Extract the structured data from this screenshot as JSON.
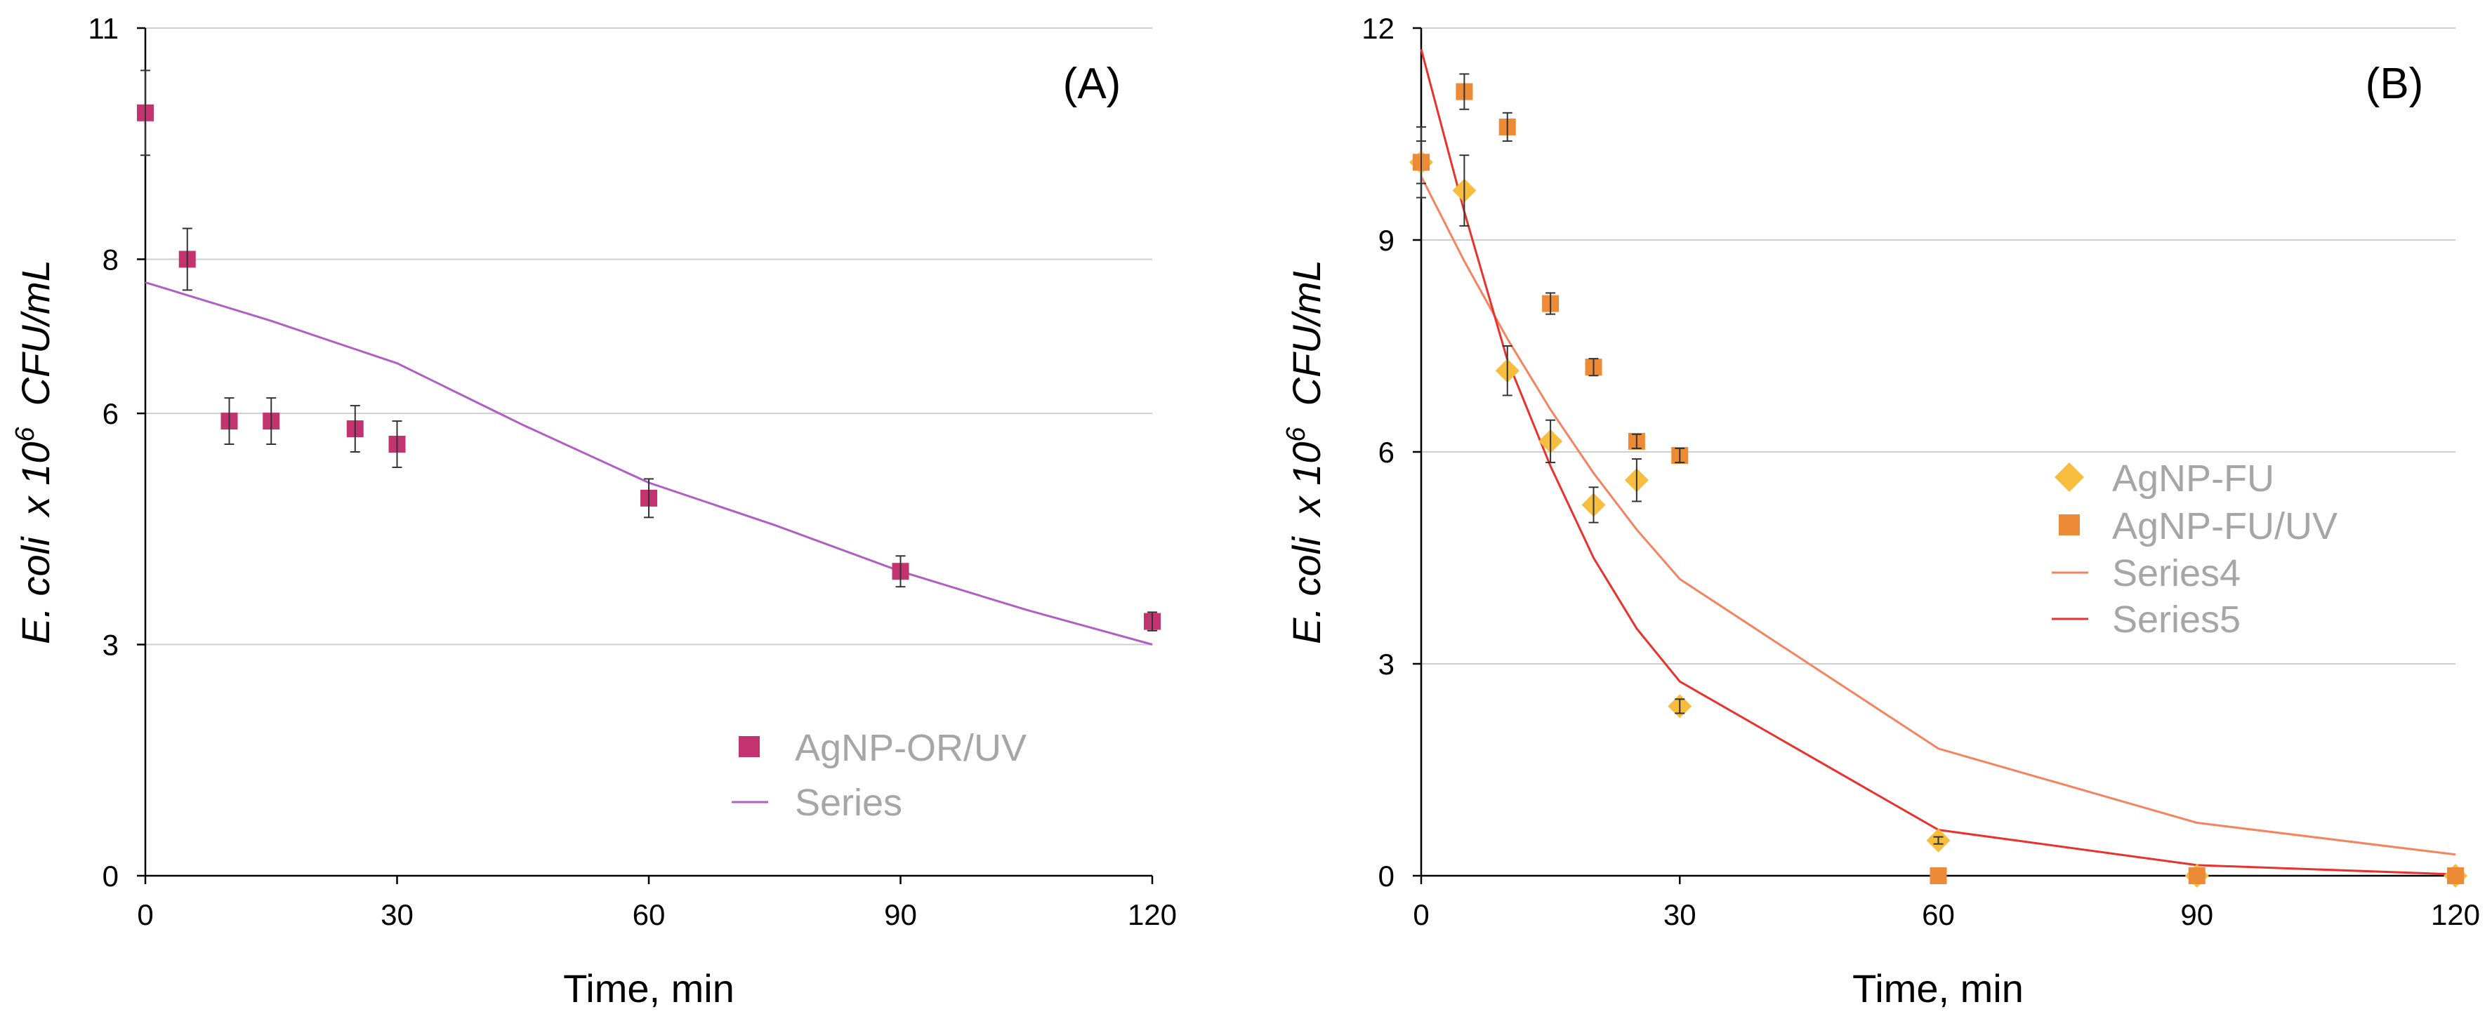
{
  "chart_data": [
    {
      "type": "scatter",
      "panel_label": "(A)",
      "xlabel": "Time, min",
      "ylabel": {
        "main": "E. coli",
        "mult": "x 10",
        "exp": "6",
        "unit": "CFU/mL"
      },
      "xlim": [
        0,
        120
      ],
      "ylim": [
        0,
        11
      ],
      "xticks": [
        0,
        30,
        60,
        90,
        120
      ],
      "yticks": [
        0,
        3,
        6,
        8,
        11
      ],
      "grid": "horizontal",
      "legend_position": "bottom-right",
      "colors": {
        "marker": "#c2336f",
        "fit": "#b05fc4",
        "grid": "#cfcfcf",
        "legend_text": "#a6a6a6"
      },
      "series": [
        {
          "name": "AgNP-OR/UV",
          "kind": "scatter",
          "marker": "square",
          "color": "#c2336f",
          "x": [
            0,
            5,
            10,
            15,
            25,
            30,
            60,
            90,
            120
          ],
          "y": [
            9.9,
            8.0,
            5.9,
            5.9,
            5.8,
            5.6,
            4.9,
            3.95,
            3.3
          ],
          "err": [
            0.55,
            0.4,
            0.3,
            0.3,
            0.3,
            0.3,
            0.25,
            0.2,
            0.12
          ]
        },
        {
          "name": "Series",
          "kind": "line",
          "color": "#b05fc4",
          "x": [
            0,
            15,
            30,
            45,
            60,
            75,
            90,
            105,
            120
          ],
          "y": [
            7.7,
            7.2,
            6.65,
            5.85,
            5.1,
            4.55,
            3.95,
            3.45,
            3.0
          ]
        }
      ]
    },
    {
      "type": "scatter",
      "panel_label": "(B)",
      "xlabel": "Time, min",
      "ylabel": {
        "main": "E. coli",
        "mult": "x 10",
        "exp": "6",
        "unit": "CFU/mL"
      },
      "xlim": [
        0,
        120
      ],
      "ylim": [
        0,
        12
      ],
      "xticks": [
        0,
        30,
        60,
        90,
        120
      ],
      "yticks": [
        0,
        3,
        6,
        9,
        12
      ],
      "grid": "horizontal",
      "legend_position": "center-right",
      "colors": {
        "diamond": "#f6bd3f",
        "square": "#ec8a36",
        "series4": "#f4845f",
        "series5": "#e8322d",
        "grid": "#cfcfcf",
        "legend_text": "#a6a6a6"
      },
      "series": [
        {
          "name": "AgNP-FU",
          "kind": "scatter",
          "marker": "diamond",
          "color": "#f6bd3f",
          "x": [
            0,
            5,
            10,
            15,
            20,
            25,
            30,
            60,
            90,
            120
          ],
          "y": [
            10.1,
            9.7,
            7.15,
            6.15,
            5.25,
            5.6,
            2.4,
            0.5,
            0.0,
            0.0
          ],
          "err": [
            0.5,
            0.5,
            0.35,
            0.3,
            0.25,
            0.3,
            0.1,
            0.05,
            0.0,
            0.0
          ]
        },
        {
          "name": "AgNP-FU/UV",
          "kind": "scatter",
          "marker": "square",
          "color": "#ec8a36",
          "x": [
            0,
            5,
            10,
            15,
            20,
            25,
            30,
            60,
            90,
            120
          ],
          "y": [
            10.1,
            11.1,
            10.6,
            8.1,
            7.2,
            6.15,
            5.95,
            0.0,
            0.0,
            0.0
          ],
          "err": [
            0.3,
            0.25,
            0.2,
            0.15,
            0.12,
            0.1,
            0.1,
            0.0,
            0.0,
            0.0
          ]
        },
        {
          "name": "Series4",
          "kind": "line",
          "color": "#f4845f",
          "x": [
            0,
            5,
            10,
            15,
            20,
            25,
            30,
            60,
            90,
            120
          ],
          "y": [
            9.9,
            8.7,
            7.6,
            6.6,
            5.7,
            4.9,
            4.2,
            1.8,
            0.75,
            0.3
          ]
        },
        {
          "name": "Series5",
          "kind": "line",
          "color": "#e8322d",
          "x": [
            0,
            5,
            10,
            15,
            20,
            25,
            30,
            60,
            90,
            120
          ],
          "y": [
            11.7,
            9.4,
            7.3,
            5.8,
            4.5,
            3.5,
            2.75,
            0.65,
            0.15,
            0.02
          ]
        }
      ]
    }
  ]
}
